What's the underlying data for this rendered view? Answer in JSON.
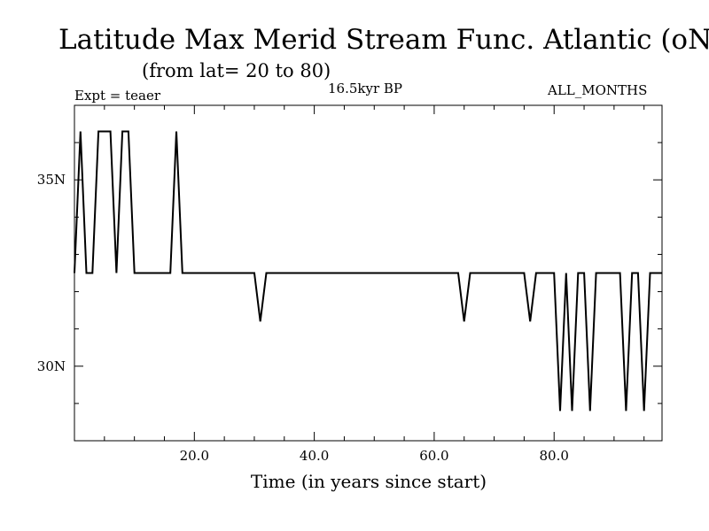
{
  "header": {
    "title": "Latitude Max Merid Stream Func. Atlantic (oN)",
    "subtitle": "(from lat= 20 to 80)",
    "experiment": "Expt = teaer",
    "period": "16.5kyr BP",
    "months": "ALL_MONTHS"
  },
  "colors": {
    "line": "#000000",
    "axis": "#000000",
    "background": "#ffffff"
  },
  "chart_data": {
    "type": "line",
    "title": "Latitude Max Merid Stream Func. Atlantic (oN)",
    "subtitle": "(from lat= 20 to 80)",
    "xlabel": "Time (in years since start)",
    "ylabel": "",
    "xlim": [
      0,
      98
    ],
    "ylim": [
      28.0,
      37.0
    ],
    "x_ticks": [
      {
        "value": 20,
        "label": "20.0"
      },
      {
        "value": 40,
        "label": "40.0"
      },
      {
        "value": 60,
        "label": "60.0"
      },
      {
        "value": 80,
        "label": "80.0"
      }
    ],
    "y_ticks": [
      {
        "value": 30,
        "label": "30N"
      },
      {
        "value": 35,
        "label": "35N"
      }
    ],
    "grid": false,
    "series": [
      {
        "name": "Latitude Max Merid Stream Func",
        "x": [
          0,
          1,
          2,
          3,
          4,
          5,
          6,
          7,
          8,
          9,
          10,
          11,
          12,
          13,
          14,
          15,
          16,
          17,
          18,
          19,
          20,
          21,
          22,
          23,
          24,
          25,
          26,
          27,
          28,
          29,
          30,
          31,
          32,
          33,
          34,
          35,
          36,
          37,
          38,
          39,
          40,
          41,
          42,
          43,
          44,
          45,
          46,
          47,
          48,
          49,
          50,
          51,
          52,
          53,
          54,
          55,
          56,
          57,
          58,
          59,
          60,
          61,
          62,
          63,
          64,
          65,
          66,
          67,
          68,
          69,
          70,
          71,
          72,
          73,
          74,
          75,
          76,
          77,
          78,
          79,
          80,
          81,
          82,
          83,
          84,
          85,
          86,
          87,
          88,
          89,
          90,
          91,
          92,
          93,
          94,
          95,
          96,
          97,
          98
        ],
        "values": [
          32.5,
          36.3,
          32.5,
          32.5,
          36.3,
          36.3,
          36.3,
          32.5,
          36.3,
          36.3,
          32.5,
          32.5,
          32.5,
          32.5,
          32.5,
          32.5,
          32.5,
          36.3,
          32.5,
          32.5,
          32.5,
          32.5,
          32.5,
          32.5,
          32.5,
          32.5,
          32.5,
          32.5,
          32.5,
          32.5,
          32.5,
          31.2,
          32.5,
          32.5,
          32.5,
          32.5,
          32.5,
          32.5,
          32.5,
          32.5,
          32.5,
          32.5,
          32.5,
          32.5,
          32.5,
          32.5,
          32.5,
          32.5,
          32.5,
          32.5,
          32.5,
          32.5,
          32.5,
          32.5,
          32.5,
          32.5,
          32.5,
          32.5,
          32.5,
          32.5,
          32.5,
          32.5,
          32.5,
          32.5,
          32.5,
          31.2,
          32.5,
          32.5,
          32.5,
          32.5,
          32.5,
          32.5,
          32.5,
          32.5,
          32.5,
          32.5,
          31.2,
          32.5,
          32.5,
          32.5,
          32.5,
          28.8,
          32.5,
          28.8,
          32.5,
          32.5,
          28.8,
          32.5,
          32.5,
          32.5,
          32.5,
          32.5,
          28.8,
          32.5,
          32.5,
          28.8,
          32.5,
          32.5,
          32.5
        ]
      }
    ]
  }
}
